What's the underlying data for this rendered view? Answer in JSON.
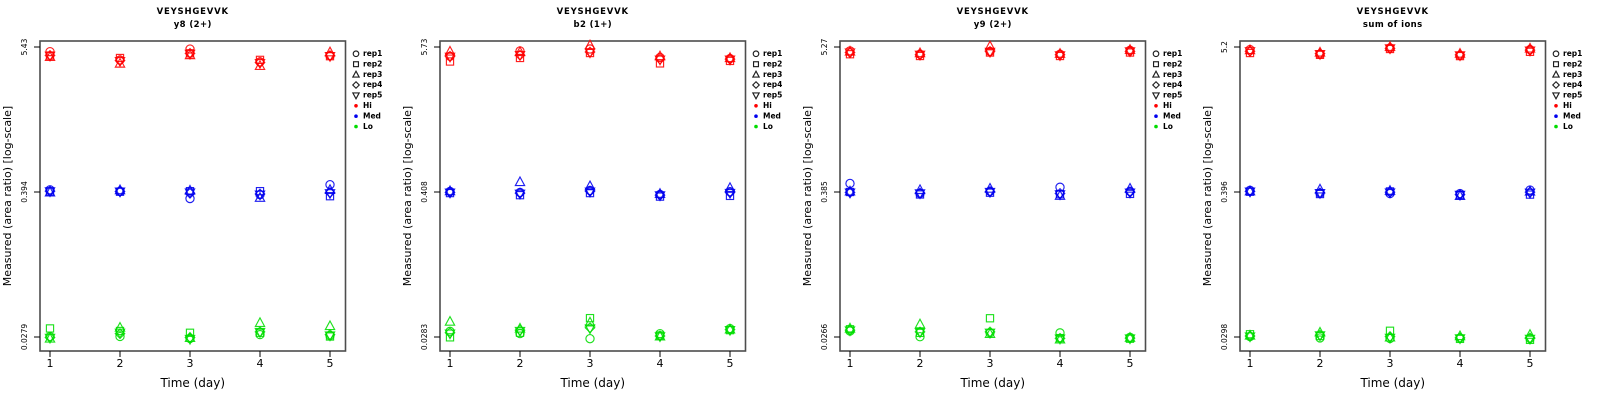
{
  "figure": {
    "background": "#FFFFFF",
    "frame_color": "#4D4D4D",
    "text_color": "#000000",
    "ylabel": "Measured (area ratio) [log-scale]",
    "xlabel": "Time (day)",
    "x_tick_labels": [
      "1",
      "2",
      "3",
      "4",
      "5"
    ],
    "legend": {
      "rep_items": [
        {
          "label": "rep1",
          "marker": "circle"
        },
        {
          "label": "rep2",
          "marker": "square"
        },
        {
          "label": "rep3",
          "marker": "triangle-up"
        },
        {
          "label": "rep4",
          "marker": "diamond"
        },
        {
          "label": "rep5",
          "marker": "triangle-down"
        }
      ],
      "level_items": [
        {
          "label": "Hi",
          "color": "#FF0000"
        },
        {
          "label": "Med",
          "color": "#0000EE"
        },
        {
          "label": "Lo",
          "color": "#00DD00"
        }
      ]
    }
  },
  "chart_data": [
    {
      "type": "scatter",
      "title": "VEYSHGEVVK",
      "subtitle": "y8 (2+)",
      "xlabel": "Time (day)",
      "ylabel": "Measured (area ratio) [log-scale]",
      "x": [
        1,
        2,
        3,
        4,
        5
      ],
      "yscale": "log",
      "yticks": [
        5.43,
        0.394,
        0.0279
      ],
      "rep_names": [
        "rep1",
        "rep2",
        "rep3",
        "rep4",
        "rep5"
      ],
      "rep_markers": [
        "circle",
        "square",
        "triangle-up",
        "diamond",
        "triangle-down"
      ],
      "levels": [
        {
          "name": "Hi",
          "color": "#FF0000",
          "values_by_day": [
            [
              5.05,
              4.7,
              4.6,
              4.72,
              4.68
            ],
            [
              4.35,
              4.5,
              4.07,
              4.3,
              4.25
            ],
            [
              5.3,
              4.9,
              4.75,
              4.9,
              4.85
            ],
            [
              4.2,
              4.35,
              3.9,
              4.15,
              4.1
            ],
            [
              4.7,
              4.65,
              5.0,
              4.7,
              4.65
            ]
          ]
        },
        {
          "name": "Med",
          "color": "#0000EE",
          "values_by_day": [
            [
              0.41,
              0.398,
              0.392,
              0.4,
              0.398
            ],
            [
              0.4,
              0.396,
              0.408,
              0.398,
              0.396
            ],
            [
              0.35,
              0.4,
              0.405,
              0.385,
              0.39
            ],
            [
              0.375,
              0.4,
              0.355,
              0.38,
              0.375
            ],
            [
              0.45,
              0.365,
              0.41,
              0.39,
              0.385
            ]
          ]
        },
        {
          "name": "Lo",
          "color": "#00DD00",
          "values_by_day": [
            [
              0.0285,
              0.033,
              0.0275,
              0.028,
              0.0278
            ],
            [
              0.0285,
              0.0315,
              0.0335,
              0.03,
              0.0305
            ],
            [
              0.0275,
              0.0305,
              0.0278,
              0.028,
              0.0272
            ],
            [
              0.0295,
              0.0305,
              0.0365,
              0.031,
              0.0308
            ],
            [
              0.029,
              0.0285,
              0.0345,
              0.0295,
              0.029
            ]
          ]
        }
      ]
    },
    {
      "type": "scatter",
      "title": "VEYSHGEVVK",
      "subtitle": "b2 (1+)",
      "xlabel": "Time (day)",
      "ylabel": "Measured (area ratio) [log-scale]",
      "x": [
        1,
        2,
        3,
        4,
        5
      ],
      "yscale": "log",
      "yticks": [
        5.73,
        0.408,
        0.0283
      ],
      "rep_names": [
        "rep1",
        "rep2",
        "rep3",
        "rep4",
        "rep5"
      ],
      "rep_markers": [
        "circle",
        "square",
        "triangle-up",
        "diamond",
        "triangle-down"
      ],
      "levels": [
        {
          "name": "Hi",
          "color": "#FF0000",
          "values_by_day": [
            [
              4.9,
              4.45,
              5.35,
              4.9,
              4.85
            ],
            [
              5.4,
              4.75,
              5.3,
              5.0,
              5.0
            ],
            [
              5.6,
              5.2,
              6.0,
              5.3,
              5.25
            ],
            [
              4.8,
              4.3,
              4.9,
              4.65,
              4.6
            ],
            [
              4.7,
              4.5,
              4.75,
              4.65,
              4.6
            ]
          ]
        },
        {
          "name": "Med",
          "color": "#0000EE",
          "values_by_day": [
            [
              0.412,
              0.4,
              0.415,
              0.405,
              0.403
            ],
            [
              0.405,
              0.385,
              0.49,
              0.4,
              0.395
            ],
            [
              0.42,
              0.4,
              0.455,
              0.415,
              0.41
            ],
            [
              0.39,
              0.375,
              0.395,
              0.385,
              0.383
            ],
            [
              0.41,
              0.38,
              0.44,
              0.405,
              0.4
            ]
          ]
        },
        {
          "name": "Lo",
          "color": "#00DD00",
          "values_by_day": [
            [
              0.0318,
              0.0285,
              0.038,
              0.031,
              0.0305
            ],
            [
              0.0305,
              0.031,
              0.0335,
              0.0325,
              0.032
            ],
            [
              0.0278,
              0.0405,
              0.0375,
              0.034,
              0.0335
            ],
            [
              0.0305,
              0.0295,
              0.029,
              0.0292,
              0.029
            ],
            [
              0.0335,
              0.0325,
              0.033,
              0.0328,
              0.0325
            ]
          ]
        }
      ]
    },
    {
      "type": "scatter",
      "title": "VEYSHGEVVK",
      "subtitle": "y9 (2+)",
      "xlabel": "Time (day)",
      "ylabel": "Measured (area ratio) [log-scale]",
      "x": [
        1,
        2,
        3,
        4,
        5
      ],
      "yscale": "log",
      "yticks": [
        5.27,
        0.385,
        0.0266
      ],
      "rep_names": [
        "rep1",
        "rep2",
        "rep3",
        "rep4",
        "rep5"
      ],
      "rep_markers": [
        "circle",
        "square",
        "triangle-up",
        "diamond",
        "triangle-down"
      ],
      "levels": [
        {
          "name": "Hi",
          "color": "#FF0000",
          "values_by_day": [
            [
              5.05,
              4.75,
              5.0,
              4.9,
              4.9
            ],
            [
              4.75,
              4.6,
              4.85,
              4.7,
              4.7
            ],
            [
              5.0,
              4.9,
              5.5,
              5.0,
              4.95
            ],
            [
              4.75,
              4.6,
              4.8,
              4.7,
              4.65
            ],
            [
              5.1,
              4.9,
              5.15,
              5.0,
              5.0
            ]
          ]
        },
        {
          "name": "Med",
          "color": "#0000EE",
          "values_by_day": [
            [
              0.45,
              0.385,
              0.39,
              0.382,
              0.38
            ],
            [
              0.375,
              0.368,
              0.4,
              0.378,
              0.375
            ],
            [
              0.39,
              0.38,
              0.41,
              0.388,
              0.385
            ],
            [
              0.42,
              0.37,
              0.36,
              0.375,
              0.368
            ],
            [
              0.39,
              0.372,
              0.41,
              0.385,
              0.38
            ]
          ]
        },
        {
          "name": "Lo",
          "color": "#00DD00",
          "values_by_day": [
            [
              0.0305,
              0.0315,
              0.032,
              0.031,
              0.0308
            ],
            [
              0.0275,
              0.0295,
              0.0345,
              0.03,
              0.0298
            ],
            [
              0.0295,
              0.0385,
              0.029,
              0.03,
              0.0295
            ],
            [
              0.0295,
              0.0268,
              0.0262,
              0.0267,
              0.0265
            ],
            [
              0.0272,
              0.0265,
              0.027,
              0.0268,
              0.0266
            ]
          ]
        }
      ]
    },
    {
      "type": "scatter",
      "title": "VEYSHGEVVK",
      "subtitle": "sum of ions",
      "xlabel": "Time (day)",
      "ylabel": "Measured (area ratio) [log-scale]",
      "x": [
        1,
        2,
        3,
        4,
        5
      ],
      "yscale": "log",
      "yticks": [
        5.2,
        0.396,
        0.0298
      ],
      "rep_names": [
        "rep1",
        "rep2",
        "rep3",
        "rep4",
        "rep5"
      ],
      "rep_markers": [
        "circle",
        "square",
        "triangle-up",
        "diamond",
        "triangle-down"
      ],
      "levels": [
        {
          "name": "Hi",
          "color": "#FF0000",
          "values_by_day": [
            [
              5.0,
              4.7,
              4.95,
              4.85,
              4.85
            ],
            [
              4.6,
              4.55,
              4.75,
              4.65,
              4.6
            ],
            [
              5.15,
              5.05,
              5.25,
              5.1,
              5.1
            ],
            [
              4.5,
              4.45,
              4.65,
              4.55,
              4.5
            ],
            [
              5.0,
              4.8,
              5.1,
              4.95,
              4.9
            ]
          ]
        },
        {
          "name": "Med",
          "color": "#0000EE",
          "values_by_day": [
            [
              0.408,
              0.398,
              0.402,
              0.4,
              0.398
            ],
            [
              0.388,
              0.382,
              0.415,
              0.39,
              0.388
            ],
            [
              0.385,
              0.4,
              0.405,
              0.395,
              0.392
            ],
            [
              0.385,
              0.375,
              0.37,
              0.378,
              0.376
            ],
            [
              0.41,
              0.378,
              0.4,
              0.395,
              0.39
            ]
          ]
        },
        {
          "name": "Lo",
          "color": "#00DD00",
          "values_by_day": [
            [
              0.0302,
              0.0315,
              0.0308,
              0.0305,
              0.0302
            ],
            [
              0.0295,
              0.0305,
              0.0325,
              0.031,
              0.0308
            ],
            [
              0.0292,
              0.0335,
              0.0298,
              0.0302,
              0.0295
            ],
            [
              0.0295,
              0.029,
              0.0305,
              0.0295,
              0.0292
            ],
            [
              0.0292,
              0.0285,
              0.0312,
              0.0295,
              0.029
            ]
          ]
        }
      ]
    }
  ]
}
